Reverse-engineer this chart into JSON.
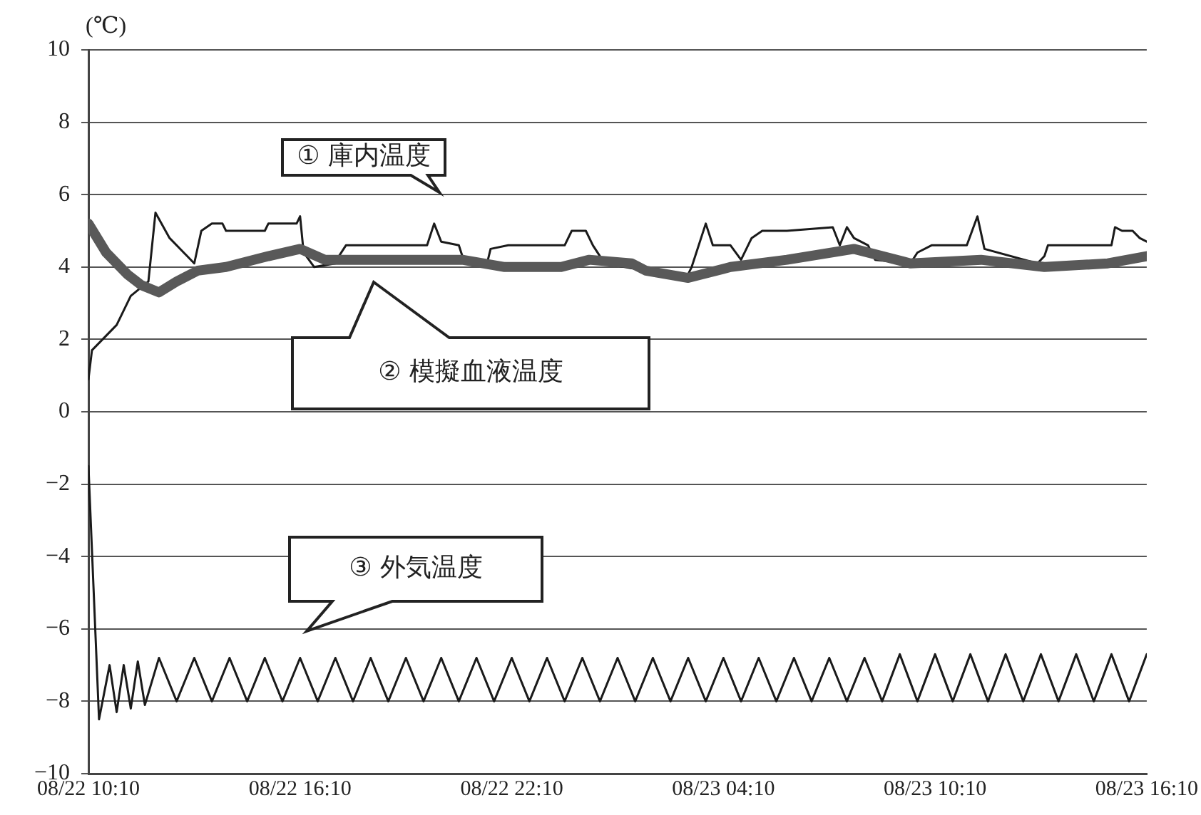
{
  "chart_data": {
    "type": "line",
    "ylabel": "(℃)",
    "xlim": [
      "--08-22T10:10",
      "--08-23T16:10"
    ],
    "xticks": [
      {
        "value": "--08-22T10:10",
        "label": "08/22 10:10"
      },
      {
        "value": "--08-22T16:10",
        "label": "08/22 16:10"
      },
      {
        "value": "--08-22T22:10",
        "label": "08/22 22:10"
      },
      {
        "value": "--08-23T04:10",
        "label": "08/23 04:10"
      },
      {
        "value": "--08-23T10:10",
        "label": "08/23 10:10"
      },
      {
        "value": "--08-23T16:10",
        "label": "08/23 16:10"
      }
    ],
    "ylim": [
      -10,
      10
    ],
    "yticks": [
      {
        "value": -10,
        "label": "−10"
      },
      {
        "value": -8,
        "label": "−8"
      },
      {
        "value": -6,
        "label": "−6"
      },
      {
        "value": -4,
        "label": "−4"
      },
      {
        "value": -2,
        "label": "−2"
      },
      {
        "value": 0,
        "label": "0"
      },
      {
        "value": 2,
        "label": "2"
      },
      {
        "value": 4,
        "label": "4"
      },
      {
        "value": 6,
        "label": "6"
      },
      {
        "value": 8,
        "label": "8"
      },
      {
        "value": 10,
        "label": "10"
      }
    ],
    "grid": "y",
    "legend": false,
    "marker": "none",
    "line_style": "solid",
    "series": [
      {
        "color": "#595959",
        "x": [
          "--08-22T10:10",
          "--08-22T10:40",
          "--08-22T11:16",
          "--08-22T11:40",
          "--08-22T12:10",
          "--08-22T12:40",
          "--08-22T13:16",
          "--08-22T14:04",
          "--08-22T15:16",
          "--08-22T16:10",
          "--08-22T16:52",
          "--08-22T19:34",
          "--08-22T20:46",
          "--08-22T21:58",
          "--08-22T23:34",
          "--08-23T00:22",
          "--08-23T01:34",
          "--08-23T01:58",
          "--08-23T03:10",
          "--08-23T04:22",
          "--08-23T05:58",
          "--08-23T07:52",
          "--08-23T09:28",
          "--08-23T11:28",
          "--08-23T13:16",
          "--08-23T15:04",
          "--08-23T16:10"
        ],
        "values": [
          5.2,
          4.4,
          3.8,
          3.5,
          3.3,
          3.6,
          3.9,
          4.0,
          4.3,
          4.5,
          4.2,
          4.2,
          4.2,
          4.0,
          4.0,
          4.2,
          4.1,
          3.9,
          3.7,
          4.0,
          4.2,
          4.5,
          4.1,
          4.2,
          4.0,
          4.1,
          4.3
        ]
      },
      {
        "color": "#1a1a1a",
        "x": [
          "--08-22T10:10",
          "--08-22T10:16",
          "--08-22T10:58",
          "--08-22T11:22",
          "--08-22T11:52",
          "--08-22T12:04",
          "--08-22T12:28",
          "--08-22T12:58",
          "--08-22T13:10",
          "--08-22T13:22",
          "--08-22T13:40",
          "--08-22T13:58",
          "--08-22T14:04",
          "--08-22T15:10",
          "--08-22T15:16",
          "--08-22T16:04",
          "--08-22T16:10",
          "--08-22T16:16",
          "--08-22T16:34",
          "--08-22T17:10",
          "--08-22T17:16",
          "--08-22T17:28",
          "--08-22T19:46",
          "--08-22T19:58",
          "--08-22T20:10",
          "--08-22T20:40",
          "--08-22T20:46",
          "--08-22T20:58",
          "--08-22T21:28",
          "--08-22T21:34",
          "--08-22T22:04",
          "--08-22T23:40",
          "--08-22T23:52",
          "--08-23T00:16",
          "--08-23T00:28",
          "--08-23T00:40",
          "--08-23T00:46",
          "--08-23T01:58",
          "--08-23T03:10",
          "--08-23T03:16",
          "--08-23T03:40",
          "--08-23T03:52",
          "--08-23T04:22",
          "--08-23T04:40",
          "--08-23T04:58",
          "--08-23T05:16",
          "--08-23T05:58",
          "--08-23T07:16",
          "--08-23T07:28",
          "--08-23T07:40",
          "--08-23T07:52",
          "--08-23T08:16",
          "--08-23T08:28",
          "--08-23T09:28",
          "--08-23T09:40",
          "--08-23T10:04",
          "--08-23T11:04",
          "--08-23T11:22",
          "--08-23T11:34",
          "--08-23T13:04",
          "--08-23T13:16",
          "--08-23T13:22",
          "--08-23T15:10",
          "--08-23T15:16",
          "--08-23T15:28",
          "--08-23T15:46",
          "--08-23T15:58",
          "--08-23T16:10"
        ],
        "values": [
          0.9,
          1.7,
          2.4,
          3.2,
          3.6,
          5.5,
          4.8,
          4.3,
          4.1,
          5.0,
          5.2,
          5.2,
          5.0,
          5.0,
          5.2,
          5.2,
          5.4,
          4.4,
          4.0,
          4.1,
          4.3,
          4.6,
          4.6,
          5.2,
          4.7,
          4.6,
          4.3,
          4.1,
          4.1,
          4.5,
          4.6,
          4.6,
          5.0,
          5.0,
          4.6,
          4.3,
          4.1,
          3.9,
          3.8,
          4.0,
          5.2,
          4.6,
          4.6,
          4.2,
          4.8,
          5.0,
          5.0,
          5.1,
          4.6,
          5.1,
          4.8,
          4.6,
          4.2,
          4.1,
          4.4,
          4.6,
          4.6,
          5.4,
          4.5,
          4.1,
          4.3,
          4.6,
          4.6,
          5.1,
          5.0,
          5.0,
          4.8,
          4.7
        ]
      },
      {
        "color": "#1a1a1a",
        "x": [
          "--08-22T10:10",
          "--08-22T10:28",
          "--08-22T10:46",
          "--08-22T10:58",
          "--08-22T11:10",
          "--08-22T11:22",
          "--08-22T11:34",
          "--08-22T11:46",
          "--08-22T12:10",
          "--08-22T12:40",
          "--08-22T13:10",
          "--08-22T13:40",
          "--08-22T14:10",
          "--08-22T14:40",
          "--08-22T15:10",
          "--08-22T15:40",
          "--08-22T16:10",
          "--08-22T16:40",
          "--08-22T17:10",
          "--08-22T17:40",
          "--08-22T18:10",
          "--08-22T18:40",
          "--08-22T19:10",
          "--08-22T19:40",
          "--08-22T20:10",
          "--08-22T20:40",
          "--08-22T21:10",
          "--08-22T21:40",
          "--08-22T22:10",
          "--08-22T22:40",
          "--08-22T23:10",
          "--08-22T23:40",
          "--08-23T00:10",
          "--08-23T00:40",
          "--08-23T01:10",
          "--08-23T01:40",
          "--08-23T02:10",
          "--08-23T02:40",
          "--08-23T03:10",
          "--08-23T03:40",
          "--08-23T04:10",
          "--08-23T04:40",
          "--08-23T05:10",
          "--08-23T05:40",
          "--08-23T06:10",
          "--08-23T06:40",
          "--08-23T07:10",
          "--08-23T07:40",
          "--08-23T08:10",
          "--08-23T08:40",
          "--08-23T09:10",
          "--08-23T09:40",
          "--08-23T10:10",
          "--08-23T10:40",
          "--08-23T11:10",
          "--08-23T11:40",
          "--08-23T12:10",
          "--08-23T12:40",
          "--08-23T13:10",
          "--08-23T13:40",
          "--08-23T14:10",
          "--08-23T14:40",
          "--08-23T15:10",
          "--08-23T15:40",
          "--08-23T16:10"
        ],
        "values": [
          -1.5,
          -8.5,
          -7.0,
          -8.3,
          -7.0,
          -8.2,
          -6.9,
          -8.1,
          -6.8,
          -8.0,
          -6.8,
          -8.0,
          -6.8,
          -8.0,
          -6.8,
          -8.0,
          -6.8,
          -8.0,
          -6.8,
          -8.0,
          -6.8,
          -8.0,
          -6.8,
          -8.0,
          -6.8,
          -8.0,
          -6.8,
          -8.0,
          -6.8,
          -8.0,
          -6.8,
          -8.0,
          -6.8,
          -8.0,
          -6.8,
          -8.0,
          -6.8,
          -8.0,
          -6.8,
          -8.0,
          -6.8,
          -8.0,
          -6.8,
          -8.0,
          -6.8,
          -8.0,
          -6.8,
          -8.0,
          -6.8,
          -8.0,
          -6.7,
          -8.0,
          -6.7,
          -8.0,
          -6.7,
          -8.0,
          -6.7,
          -8.0,
          -6.7,
          -8.0,
          -6.7,
          -8.0,
          -6.7,
          -8.0,
          -6.7
        ]
      }
    ],
    "annotations": [
      "① 庫内温度",
      "② 模擬血液温度",
      "③ 外気温度"
    ]
  }
}
